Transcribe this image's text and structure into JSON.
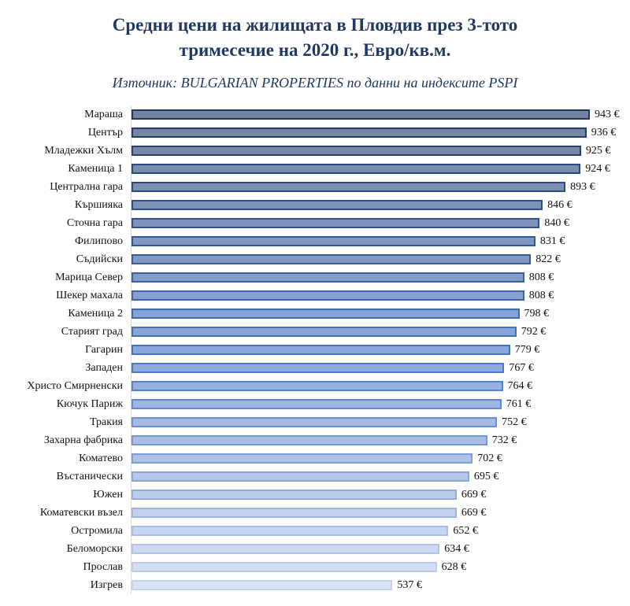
{
  "chart_data": {
    "type": "bar",
    "orientation": "horizontal",
    "title": "Средни цени на жилищата в Пловдив през 3-тото тримесечие на 2020 г., Евро/кв.м.",
    "title_lines": [
      "Средни цени на жилищата в Пловдив през 3-тото",
      "тримесечие на 2020 г., Евро/кв.м."
    ],
    "subtitle": "Източник: BULGARIAN PROPERTIES по данни на индексите PSPI",
    "unit": "€",
    "value_suffix": " €",
    "xlim": [
      0,
      943
    ],
    "grid": false,
    "legend": false,
    "title_color": "#1F3864",
    "categories": [
      "Мараша",
      "Център",
      "Младежки Хълм",
      "Каменица 1",
      "Централна гара",
      "Кършияка",
      "Сточна гара",
      "Филипово",
      "Съдийски",
      "Марица Север",
      "Шекер махала",
      "Каменица 2",
      "Старият град",
      "Гагарин",
      "Западен",
      "Христо Смирненски",
      "Кючук Париж",
      "Тракия",
      "Захарна фабрика",
      "Коматево",
      "Въстанически",
      "Южен",
      "Коматевски възел",
      "Остромила",
      "Беломорски",
      "Прослав",
      "Изгрев"
    ],
    "values": [
      943,
      936,
      925,
      924,
      893,
      846,
      840,
      831,
      822,
      808,
      808,
      798,
      792,
      779,
      767,
      764,
      761,
      752,
      732,
      702,
      695,
      669,
      669,
      652,
      634,
      628,
      537
    ],
    "bar_colors": [
      "#1F3864",
      "#223D6B",
      "#254173",
      "#28467A",
      "#2A4A81",
      "#2D4F89",
      "#305390",
      "#335898",
      "#365C9F",
      "#3961A6",
      "#3C65AE",
      "#3E6AB5",
      "#416EBD",
      "#4472C4",
      "#4E79C7",
      "#5881CB",
      "#6288CE",
      "#6C90D2",
      "#7597D5",
      "#7F9ED8",
      "#89A6DC",
      "#93ADDF",
      "#9DB5E3",
      "#A7BCE6",
      "#B1C3E9",
      "#BBCBED",
      "#C5D2F0"
    ]
  }
}
